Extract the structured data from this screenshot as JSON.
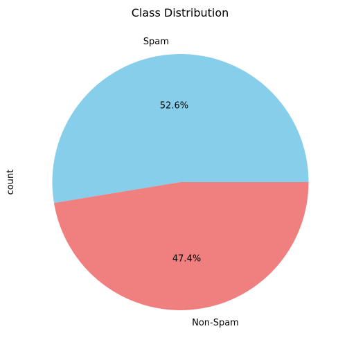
{
  "chart_data": {
    "type": "pie",
    "title": "Class Distribution",
    "ylabel": "count",
    "slices": [
      {
        "label": "Spam",
        "percent": 52.6,
        "pct_label": "52.6%",
        "color": "#87CEEB"
      },
      {
        "label": "Non-Spam",
        "percent": 47.4,
        "pct_label": "47.4%",
        "color": "#F08080"
      }
    ],
    "start_angle_deg": 0,
    "direction": "counterclockwise"
  }
}
